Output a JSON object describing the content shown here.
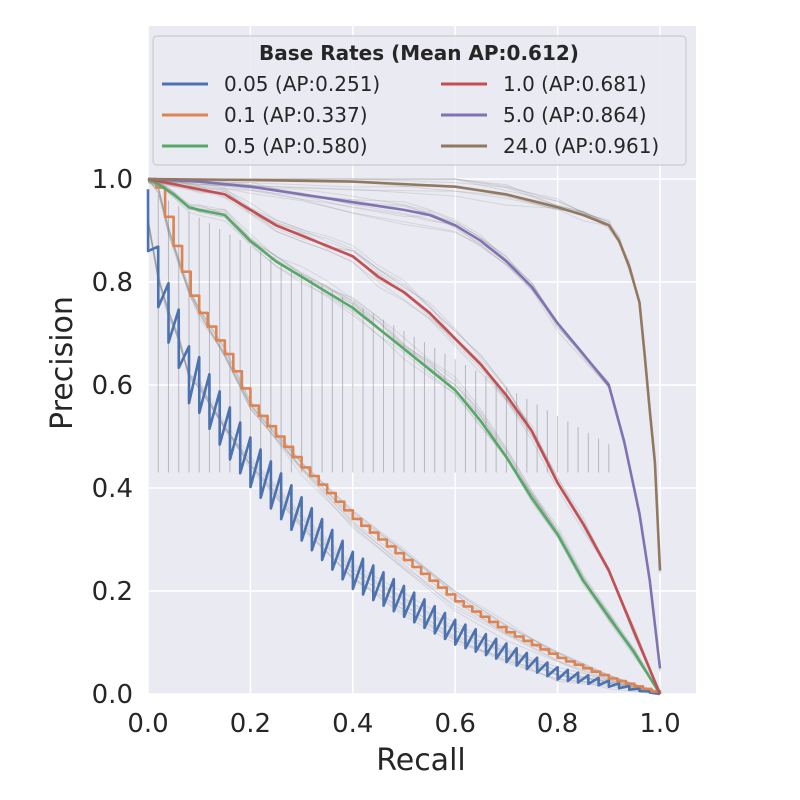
{
  "chart_data": {
    "type": "line",
    "title": "",
    "xlabel": "Recall",
    "ylabel": "Precision",
    "xlim": [
      0.0,
      1.07
    ],
    "ylim": [
      0.0,
      1.32
    ],
    "x_ticks": [
      0.0,
      0.2,
      0.4,
      0.6,
      0.8,
      1.0
    ],
    "y_ticks": [
      0.0,
      0.2,
      0.4,
      0.6,
      0.8,
      1.0
    ],
    "x_tick_labels": [
      "0.0",
      "0.2",
      "0.4",
      "0.6",
      "0.8",
      "1.0"
    ],
    "y_tick_labels": [
      "0.0",
      "0.2",
      "0.4",
      "0.6",
      "0.8",
      "1.0"
    ],
    "grid": true,
    "background": "#EAEAF2",
    "legend": {
      "title": "Base Rates (Mean AP:0.612)",
      "placement": "top",
      "columns": 2
    },
    "series": [
      {
        "name": "0.05",
        "label": "0.05 (AP:0.251)",
        "ap": 0.251,
        "color": "#4C72B0",
        "style": "sawtooth",
        "x": [
          0.0,
          0.02,
          0.04,
          0.06,
          0.08,
          0.1,
          0.15,
          0.2,
          0.3,
          0.4,
          0.5,
          0.6,
          0.7,
          0.8,
          0.9,
          1.0
        ],
        "y": [
          0.92,
          0.81,
          0.74,
          0.69,
          0.62,
          0.6,
          0.52,
          0.45,
          0.34,
          0.24,
          0.18,
          0.12,
          0.08,
          0.04,
          0.02,
          0.0
        ]
      },
      {
        "name": "0.1",
        "label": "0.1 (AP:0.337)",
        "ap": 0.337,
        "color": "#DD8452",
        "style": "stair",
        "x": [
          0.0,
          0.02,
          0.04,
          0.06,
          0.08,
          0.1,
          0.15,
          0.2,
          0.3,
          0.4,
          0.5,
          0.6,
          0.7,
          0.8,
          0.9,
          1.0
        ],
        "y": [
          1.0,
          0.98,
          0.9,
          0.84,
          0.78,
          0.74,
          0.66,
          0.56,
          0.44,
          0.34,
          0.26,
          0.18,
          0.12,
          0.07,
          0.03,
          0.0
        ]
      },
      {
        "name": "0.5",
        "label": "0.5 (AP:0.580)",
        "ap": 0.58,
        "color": "#55A868",
        "style": "line",
        "x": [
          0.0,
          0.02,
          0.05,
          0.08,
          0.1,
          0.15,
          0.2,
          0.25,
          0.3,
          0.35,
          0.4,
          0.45,
          0.5,
          0.55,
          0.6,
          0.65,
          0.7,
          0.75,
          0.8,
          0.85,
          0.9,
          0.95,
          1.0
        ],
        "y": [
          1.0,
          0.99,
          0.97,
          0.945,
          0.94,
          0.93,
          0.88,
          0.84,
          0.81,
          0.78,
          0.75,
          0.71,
          0.67,
          0.63,
          0.59,
          0.53,
          0.46,
          0.38,
          0.31,
          0.22,
          0.15,
          0.08,
          0.0
        ]
      },
      {
        "name": "1.0",
        "label": "1.0 (AP:0.681)",
        "ap": 0.681,
        "color": "#C44E52",
        "style": "line",
        "x": [
          0.0,
          0.05,
          0.1,
          0.15,
          0.2,
          0.25,
          0.3,
          0.35,
          0.4,
          0.45,
          0.5,
          0.55,
          0.6,
          0.65,
          0.7,
          0.75,
          0.8,
          0.85,
          0.9,
          0.95,
          1.0
        ],
        "y": [
          1.0,
          0.99,
          0.98,
          0.97,
          0.94,
          0.91,
          0.89,
          0.87,
          0.85,
          0.81,
          0.78,
          0.74,
          0.69,
          0.64,
          0.58,
          0.51,
          0.41,
          0.33,
          0.24,
          0.12,
          0.0
        ]
      },
      {
        "name": "5.0",
        "label": "5.0 (AP:0.864)",
        "ap": 0.864,
        "color": "#8172B3",
        "style": "line",
        "x": [
          0.0,
          0.1,
          0.2,
          0.3,
          0.4,
          0.5,
          0.55,
          0.6,
          0.65,
          0.7,
          0.75,
          0.8,
          0.85,
          0.9,
          0.93,
          0.96,
          0.98,
          1.0
        ],
        "y": [
          1.0,
          0.995,
          0.985,
          0.97,
          0.955,
          0.94,
          0.93,
          0.91,
          0.88,
          0.84,
          0.79,
          0.72,
          0.66,
          0.6,
          0.49,
          0.35,
          0.22,
          0.05
        ]
      },
      {
        "name": "24.0",
        "label": "24.0 (AP:0.961)",
        "ap": 0.961,
        "color": "#937860",
        "style": "line",
        "x": [
          0.0,
          0.2,
          0.4,
          0.6,
          0.7,
          0.8,
          0.85,
          0.9,
          0.92,
          0.94,
          0.96,
          0.97,
          0.98,
          0.99,
          1.0
        ],
        "y": [
          1.0,
          0.998,
          0.995,
          0.985,
          0.97,
          0.945,
          0.93,
          0.91,
          0.88,
          0.83,
          0.76,
          0.66,
          0.55,
          0.45,
          0.24
        ]
      }
    ]
  }
}
